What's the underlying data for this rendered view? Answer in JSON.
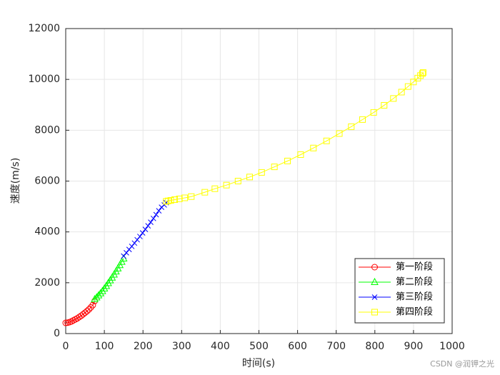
{
  "chart_data": {
    "type": "line",
    "xlabel": "时间(s)",
    "ylabel": "速度(m/s)",
    "xlim": [
      0,
      1000
    ],
    "xticks": [
      0,
      100,
      200,
      300,
      400,
      500,
      600,
      700,
      800,
      900,
      1000
    ],
    "ylim": [
      0,
      12000
    ],
    "yticks": [
      0,
      2000,
      4000,
      6000,
      8000,
      10000,
      12000
    ],
    "grid": true,
    "legend_location": "southeast",
    "series": [
      {
        "name": "第一阶段",
        "color": "#ff0000",
        "marker": "o",
        "x": [
          0,
          5,
          10,
          15,
          20,
          25,
          30,
          35,
          40,
          45,
          50,
          55,
          60,
          65,
          70,
          75
        ],
        "values": [
          420,
          430,
          450,
          480,
          520,
          560,
          600,
          650,
          700,
          760,
          820,
          880,
          950,
          1030,
          1120,
          1280
        ]
      },
      {
        "name": "第二阶段",
        "color": "#00ff00",
        "marker": "^",
        "x": [
          75,
          80,
          85,
          90,
          95,
          100,
          105,
          110,
          115,
          120,
          125,
          130,
          135,
          140,
          145,
          150
        ],
        "values": [
          1350,
          1420,
          1500,
          1580,
          1670,
          1770,
          1870,
          1980,
          2090,
          2200,
          2320,
          2440,
          2560,
          2690,
          2820,
          2950
        ]
      },
      {
        "name": "第三阶段",
        "color": "#0000ff",
        "marker": "x",
        "x": [
          150,
          157,
          164,
          171,
          178,
          185,
          192,
          199,
          206,
          213,
          220,
          227,
          234,
          241,
          248,
          255,
          260
        ],
        "values": [
          3050,
          3180,
          3310,
          3430,
          3560,
          3690,
          3820,
          3960,
          4100,
          4240,
          4380,
          4530,
          4680,
          4830,
          4970,
          5060,
          5150
        ]
      },
      {
        "name": "第四阶段",
        "color": "#ffff00",
        "marker": "s",
        "x": [
          260,
          265,
          272,
          282,
          294,
          308,
          325,
          360,
          386,
          416,
          446,
          476,
          507,
          540,
          574,
          608,
          641,
          675,
          708,
          739,
          768,
          797,
          824,
          848,
          869,
          886,
          900,
          911,
          918,
          923,
          925
        ],
        "values": [
          5200,
          5220,
          5240,
          5270,
          5300,
          5340,
          5390,
          5560,
          5700,
          5840,
          6000,
          6160,
          6340,
          6560,
          6790,
          7040,
          7300,
          7580,
          7870,
          8140,
          8420,
          8700,
          8980,
          9250,
          9500,
          9720,
          9900,
          10050,
          10150,
          10230,
          10270
        ]
      }
    ]
  },
  "watermark": "CSDN @润钾之光"
}
